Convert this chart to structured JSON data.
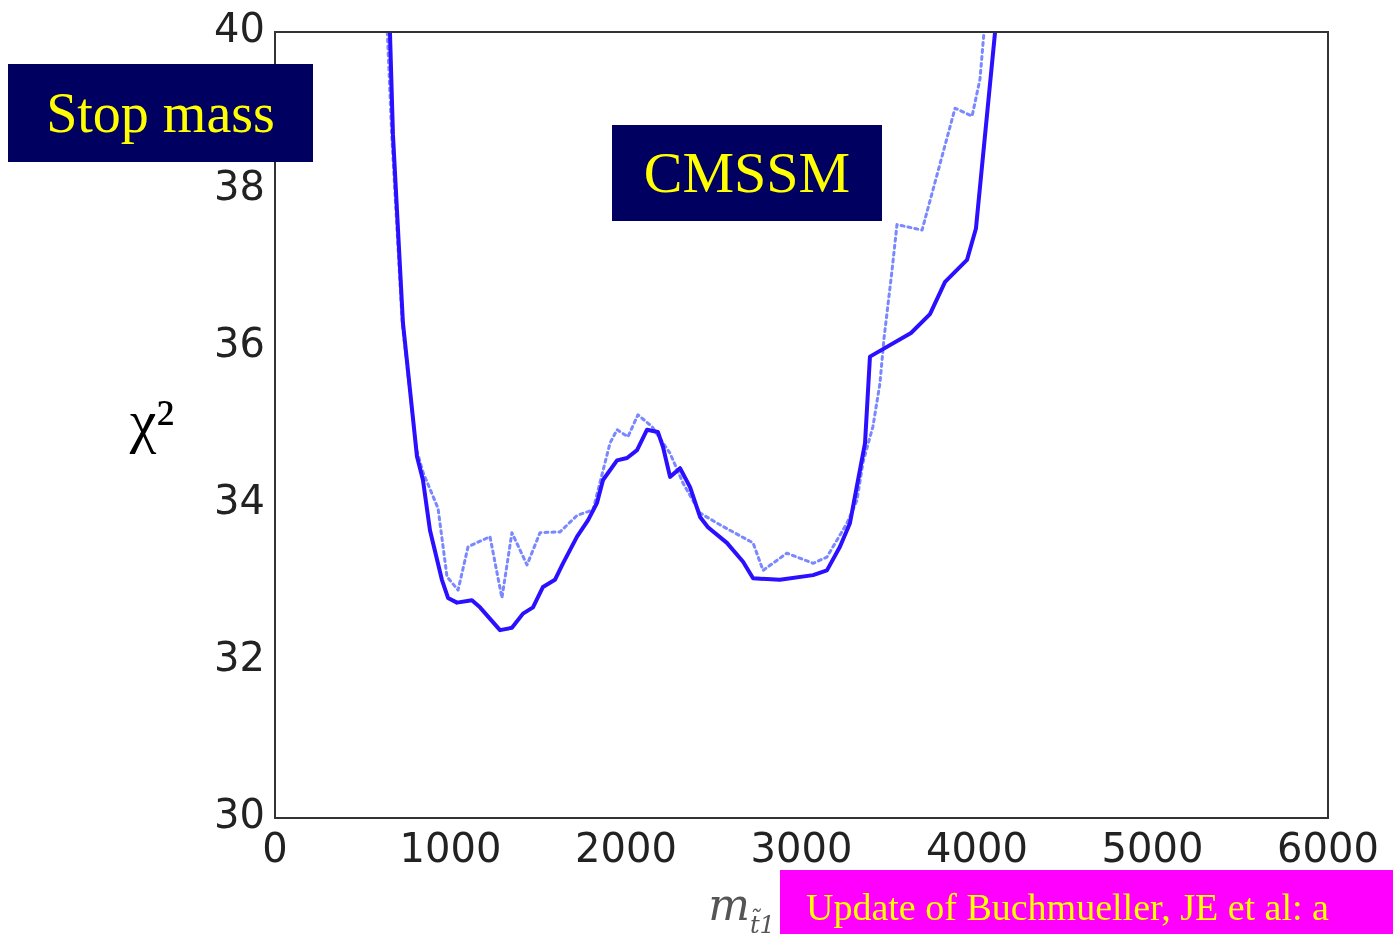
{
  "chart_data": {
    "type": "line",
    "xlabel": "m$_{t̃1}$",
    "ylabel": "χ²",
    "xlim": [
      0,
      6000
    ],
    "xticks": [
      0,
      1000,
      2000,
      3000,
      4000,
      5000,
      6000
    ],
    "ylim": [
      30,
      40
    ],
    "yticks": [
      30,
      32,
      34,
      36,
      38,
      40
    ],
    "grid": false,
    "legend": false,
    "marker": "none",
    "annotations": [
      "Stop mass",
      "CMSSM",
      "Update of Buchmueller, JE et al: a"
    ],
    "series": [
      {
        "color": "#2a10ff",
        "line_style": "solid",
        "x": [
          655,
          672,
          729,
          809,
          843,
          883,
          951,
          986,
          1037,
          1122,
          1168,
          1282,
          1350,
          1413,
          1470,
          1527,
          1595,
          1641,
          1721,
          1784,
          1835,
          1869,
          1949,
          2006,
          2063,
          2120,
          2182,
          2211,
          2251,
          2308,
          2365,
          2422,
          2467,
          2575,
          2667,
          2724,
          2877,
          3066,
          3145,
          3219,
          3276,
          3322,
          3362,
          3390,
          3624,
          3732,
          3818,
          3943,
          3994,
          4103
        ],
        "values": [
          40,
          38.7,
          36.3,
          34.6,
          34.3,
          33.66,
          33.03,
          32.8,
          32.74,
          32.77,
          32.68,
          32.39,
          32.42,
          32.6,
          32.68,
          32.94,
          33.03,
          33.24,
          33.58,
          33.79,
          34.01,
          34.3,
          34.55,
          34.58,
          34.68,
          34.94,
          34.91,
          34.72,
          34.34,
          34.45,
          34.21,
          33.83,
          33.7,
          33.5,
          33.26,
          33.05,
          33.03,
          33.09,
          33.15,
          33.45,
          33.75,
          34.3,
          34.77,
          35.87,
          36.17,
          36.41,
          36.82,
          37.1,
          37.5,
          40
        ]
      },
      {
        "color": "#7a88ff",
        "line_style": "dotted",
        "x": [
          640,
          665,
          725,
          805,
          843,
          929,
          980,
          1043,
          1100,
          1225,
          1293,
          1350,
          1436,
          1510,
          1624,
          1721,
          1812,
          1909,
          1949,
          2011,
          2068,
          2148,
          2251,
          2325,
          2422,
          2536,
          2724,
          2781,
          2917,
          3066,
          3145,
          3259,
          3316,
          3350,
          3407,
          3447,
          3470,
          3516,
          3544,
          3687,
          3875,
          3972,
          4017,
          4040
        ],
        "values": [
          40,
          38.7,
          36.3,
          34.7,
          34.4,
          33.94,
          33.07,
          32.9,
          33.45,
          33.58,
          32.8,
          33.63,
          33.22,
          33.63,
          33.64,
          33.85,
          33.92,
          34.77,
          34.94,
          34.85,
          35.13,
          34.98,
          34.64,
          34.26,
          33.88,
          33.73,
          33.5,
          33.15,
          33.37,
          33.24,
          33.32,
          33.75,
          34.04,
          34.52,
          34.98,
          35.53,
          36.1,
          36.97,
          37.55,
          37.48,
          39.03,
          38.93,
          39.4,
          40
        ]
      }
    ]
  }
}
